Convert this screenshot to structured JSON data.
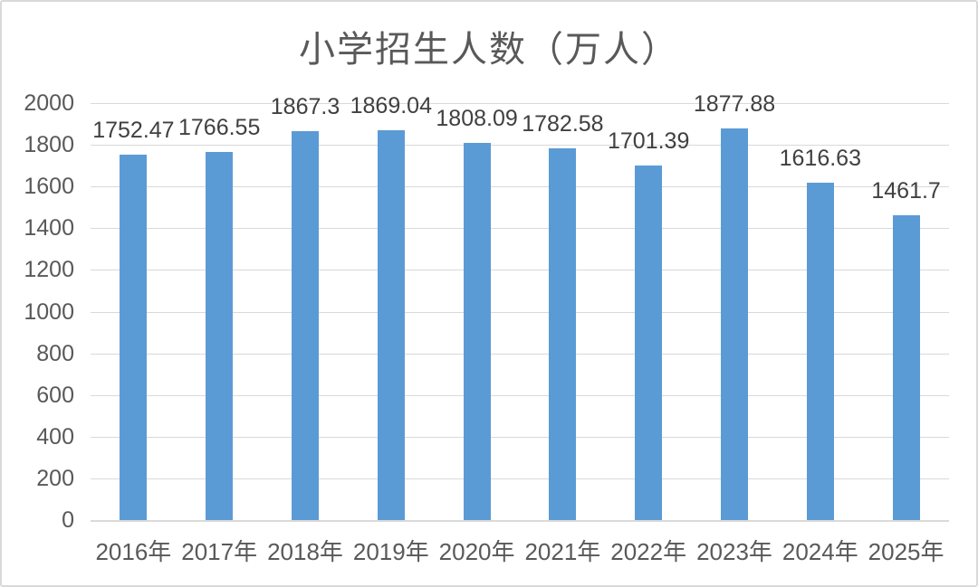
{
  "chart": {
    "bar_color": "#5B9BD5",
    "gridline_color": "#D9D9D9",
    "axis_label_color": "#595959",
    "data_label_color": "#404040",
    "title_color": "#595959",
    "background_color": "#FFFFFF",
    "frame_border_color": "#D9D9D9"
  },
  "chart_data": {
    "type": "bar",
    "title": "小学招生人数（万人）",
    "categories": [
      "2016年",
      "2017年",
      "2018年",
      "2019年",
      "2020年",
      "2021年",
      "2022年",
      "2023年",
      "2024年",
      "2025年"
    ],
    "values": [
      1752.47,
      1766.55,
      1867.3,
      1869.04,
      1808.09,
      1782.58,
      1701.39,
      1877.88,
      1616.63,
      1461.7
    ],
    "data_labels": [
      "1752.47",
      "1766.55",
      "1867.3",
      "1869.04",
      "1808.09",
      "1782.58",
      "1701.39",
      "1877.88",
      "1616.63",
      "1461.7"
    ],
    "xlabel": "",
    "ylabel": "",
    "ylim": [
      0,
      2000
    ],
    "ytick_interval": 200,
    "ytick_labels": [
      "0",
      "200",
      "400",
      "600",
      "800",
      "1000",
      "1200",
      "1400",
      "1600",
      "1800",
      "2000"
    ],
    "grid": true,
    "legend": false,
    "data_label_position": "outside-end"
  }
}
